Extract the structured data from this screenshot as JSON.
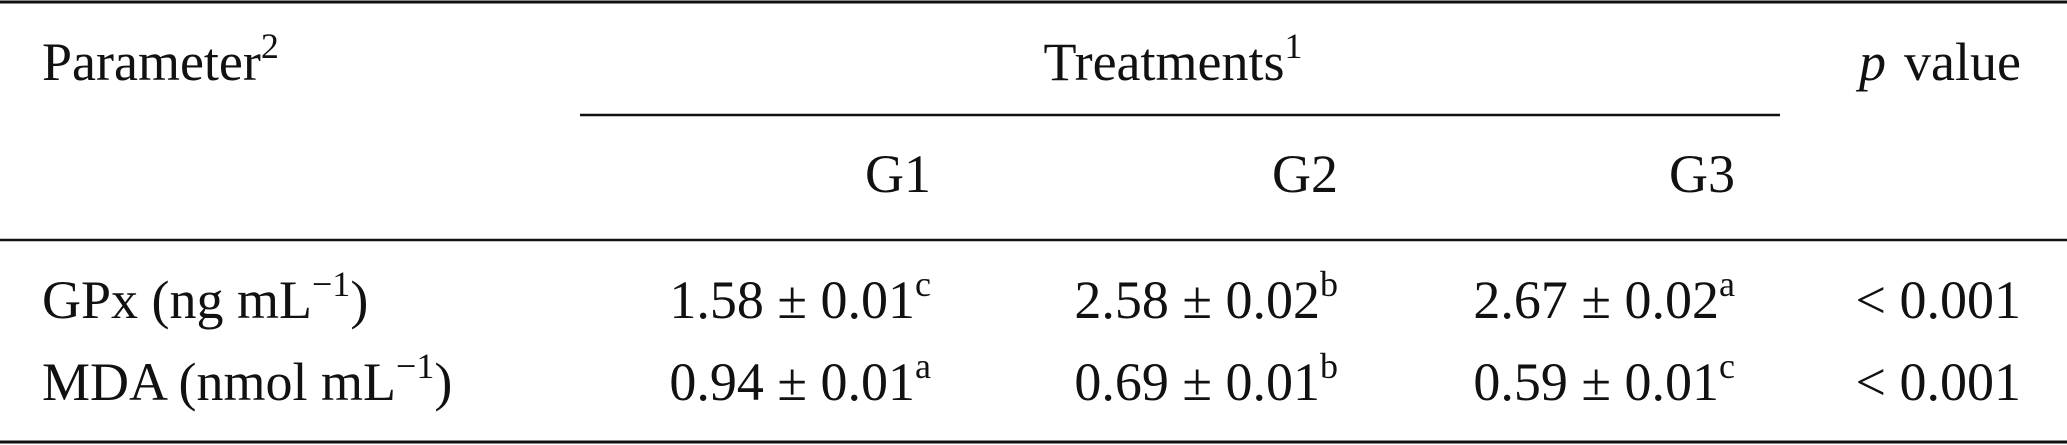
{
  "header": {
    "parameter": {
      "text": "Parameter",
      "sup": "2"
    },
    "treatments": {
      "text": "Treatments",
      "sup": "1"
    },
    "p_value": {
      "italic": "p",
      "text": "value"
    },
    "groups": [
      "G1",
      "G2",
      "G3"
    ]
  },
  "rows": [
    {
      "label": {
        "text": "GPx (ng mL",
        "sup": "−1",
        "close": ")"
      },
      "values": [
        {
          "text": "1.58 ± 0.01",
          "sup": "c"
        },
        {
          "text": "2.58 ± 0.02",
          "sup": "b"
        },
        {
          "text": "2.67 ± 0.02",
          "sup": "a"
        }
      ],
      "p": "< 0.001"
    },
    {
      "label": {
        "text": "MDA (nmol mL",
        "sup": "−1",
        "close": ")"
      },
      "values": [
        {
          "text": "0.94 ± 0.01",
          "sup": "a"
        },
        {
          "text": "0.69 ± 0.01",
          "sup": "b"
        },
        {
          "text": "0.59 ± 0.01",
          "sup": "c"
        }
      ],
      "p": "< 0.001"
    }
  ]
}
